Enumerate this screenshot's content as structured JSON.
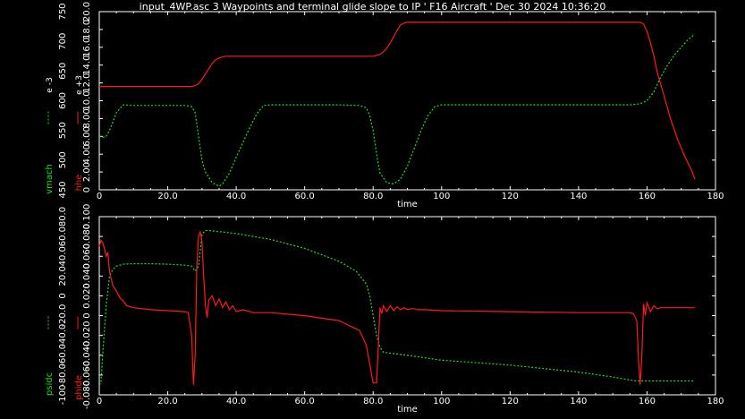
{
  "title": "input_4WP.asc 3 Waypoints and terminal glide slope to IP ' F16 Aircraft ' Dec 30 2024 10:36:20",
  "colors": {
    "background": "#000000",
    "axes": "#ffffff",
    "red": "#ff1a1a",
    "green": "#22dd22"
  },
  "chart_data": [
    {
      "type": "line",
      "xlabel": "time",
      "xlim": [
        0,
        180
      ],
      "xticks": [
        0,
        20,
        40,
        60,
        80,
        100,
        120,
        140,
        160,
        180
      ],
      "xtick_labels": [
        "0",
        "20.0",
        "40.0",
        "60.0",
        "80.0",
        "100",
        "120",
        "140",
        "160",
        "180"
      ],
      "left_axis": {
        "label": "vmach",
        "scale_note": "e -3",
        "color": "#22dd22",
        "ylim": [
          450,
          750
        ],
        "ticks": [
          450,
          500,
          550,
          600,
          650,
          700,
          750
        ],
        "tick_labels": [
          "450",
          "500",
          "550",
          "600",
          "650",
          "700",
          "750"
        ]
      },
      "right_axis": {
        "label": "hhe",
        "scale_note": "e +3",
        "color": "#ff1a1a",
        "ylim": [
          0,
          20
        ],
        "ticks": [
          0,
          2,
          4,
          6,
          8,
          10,
          12,
          14,
          16,
          18,
          20
        ],
        "tick_labels": [
          "0",
          "2.00",
          "4.00",
          "6.00",
          "8.00",
          "10.0",
          "12.0",
          "14.0",
          "16.0",
          "18.0",
          "20.0"
        ]
      },
      "series": [
        {
          "axis": "left",
          "color": "#22dd22",
          "x": [
            0,
            1,
            2,
            3,
            5,
            7,
            10,
            15,
            20,
            25,
            27,
            28,
            29,
            30,
            31,
            33,
            35,
            36,
            38,
            40,
            42,
            44,
            46,
            48,
            50,
            60,
            70,
            76,
            78,
            79,
            80,
            81,
            82,
            84,
            86,
            88,
            90,
            92,
            94,
            96,
            98,
            100,
            120,
            140,
            155,
            158,
            160,
            162,
            164,
            166,
            168,
            170,
            172,
            174
          ],
          "y": [
            540,
            538,
            540,
            550,
            580,
            593,
            592,
            592,
            592,
            592,
            590,
            580,
            540,
            500,
            480,
            462,
            456,
            460,
            478,
            505,
            530,
            555,
            578,
            592,
            593,
            593,
            593,
            592,
            588,
            575,
            550,
            510,
            478,
            462,
            460,
            468,
            490,
            520,
            550,
            575,
            590,
            593,
            593,
            593,
            593,
            595,
            600,
            615,
            640,
            660,
            677,
            690,
            703,
            712
          ]
        },
        {
          "axis": "right",
          "color": "#ff1a1a",
          "x": [
            0,
            2,
            5,
            10,
            20,
            27,
            28,
            29,
            30,
            31,
            32,
            33,
            34,
            35,
            36,
            37,
            38,
            40,
            50,
            60,
            70,
            80,
            81,
            82,
            83,
            84,
            85,
            86,
            87,
            88,
            89,
            90,
            92,
            100,
            120,
            140,
            155,
            157,
            158,
            159,
            160,
            161,
            162,
            163,
            165,
            167,
            169,
            171,
            173,
            174
          ],
          "y": [
            11.6,
            11.6,
            11.6,
            11.6,
            11.6,
            11.6,
            11.7,
            11.9,
            12.4,
            13.0,
            13.6,
            14.2,
            14.6,
            14.8,
            14.9,
            15.0,
            15.0,
            15.0,
            15.0,
            15.0,
            15.0,
            15.0,
            15.1,
            15.2,
            15.5,
            15.9,
            16.5,
            17.2,
            17.9,
            18.5,
            18.7,
            18.8,
            18.8,
            18.8,
            18.8,
            18.8,
            18.8,
            18.8,
            18.8,
            18.6,
            17.8,
            16.5,
            15.0,
            13.2,
            10.5,
            7.8,
            5.6,
            3.8,
            2.2,
            1.2
          ]
        }
      ]
    },
    {
      "type": "line",
      "xlabel": "time",
      "xlim": [
        0,
        180
      ],
      "xticks": [
        0,
        20,
        40,
        60,
        80,
        100,
        120,
        140,
        160,
        180
      ],
      "xtick_labels": [
        "0",
        "20.0",
        "40.0",
        "60.0",
        "80.0",
        "100",
        "120",
        "140",
        "160",
        "180"
      ],
      "left_axis": {
        "label": "psidc",
        "color": "#22dd22",
        "ylim": [
          -100,
          80
        ],
        "ticks": [
          -100,
          -80,
          -60,
          -40,
          -20,
          0,
          20,
          40,
          60,
          80
        ],
        "tick_labels": [
          "-100",
          "-80.0",
          "-60.0",
          "-40.0",
          "-20.0",
          "0",
          "20.0",
          "40.0",
          "60.0",
          "80.0"
        ]
      },
      "right_axis": {
        "label": "phide",
        "color": "#ff1a1a",
        "ylim": [
          -0.08,
          0.1
        ],
        "ticks": [
          -0.08,
          -0.06,
          -0.04,
          -0.02,
          0,
          0.02,
          0.04,
          0.06,
          0.08,
          0.1
        ],
        "tick_labels": [
          "-0.080",
          "-0.060",
          "-0.040",
          "-0.020",
          "0",
          "0.020",
          "0.040",
          "0.060",
          "0.080",
          "0.100"
        ]
      },
      "series": [
        {
          "axis": "left",
          "color": "#22dd22",
          "x": [
            0,
            0.5,
            1,
            2,
            3,
            4,
            5,
            7,
            10,
            15,
            20,
            25,
            27,
            28,
            29,
            30,
            31,
            32,
            40,
            50,
            60,
            70,
            75,
            78,
            79,
            80,
            81,
            82,
            83,
            90,
            100,
            120,
            140,
            150,
            155,
            157,
            158,
            160,
            165,
            170,
            174
          ],
          "y": [
            -90,
            -88,
            -60,
            -10,
            20,
            27,
            30,
            32,
            32.5,
            32.5,
            32,
            31,
            30,
            25,
            30,
            62,
            66,
            66,
            63,
            57,
            48,
            35,
            25,
            12,
            0,
            -20,
            -40,
            -52,
            -57,
            -60,
            -65,
            -70,
            -77,
            -82,
            -85,
            -86,
            -86,
            -86,
            -86,
            -86,
            -86
          ]
        },
        {
          "axis": "right",
          "color": "#ff1a1a",
          "x": [
            0,
            0.5,
            1,
            1.5,
            2,
            2.5,
            3,
            4,
            5,
            6,
            7,
            8,
            10,
            15,
            20,
            25,
            26,
            27,
            27.5,
            28,
            28.5,
            29,
            29.5,
            30,
            30.5,
            31,
            31.5,
            32,
            33,
            34,
            35,
            36,
            37,
            38,
            39,
            40,
            42,
            44,
            45,
            50,
            60,
            70,
            76,
            78,
            80,
            81,
            81.5,
            82,
            82.5,
            83,
            84,
            85,
            86,
            87,
            88,
            89,
            90,
            91,
            92,
            93,
            95,
            100,
            120,
            140,
            155,
            156,
            157,
            157.5,
            158,
            158.5,
            159,
            159.5,
            160,
            161,
            162,
            163,
            164,
            165,
            170,
            174
          ],
          "y": [
            0.07,
            0.076,
            0.074,
            0.068,
            0.06,
            0.064,
            0.044,
            0.03,
            0.025,
            0.018,
            0.015,
            0.01,
            0.008,
            0.006,
            0.005,
            0.004,
            0.003,
            -0.02,
            -0.07,
            -0.04,
            0.05,
            0.08,
            0.085,
            0.075,
            0.04,
            0.01,
            -0.002,
            0.016,
            0.02,
            0.01,
            0.017,
            0.008,
            0.014,
            0.006,
            0.01,
            0.004,
            0.006,
            0.004,
            0.003,
            0.003,
            0.0,
            -0.005,
            -0.015,
            -0.03,
            -0.068,
            -0.068,
            -0.03,
            0.008,
            0.002,
            0.01,
            0.004,
            0.01,
            0.005,
            0.009,
            0.006,
            0.008,
            0.006,
            0.007,
            0.007,
            0.006,
            0.006,
            0.005,
            0.004,
            0.003,
            0.003,
            0.002,
            -0.005,
            -0.045,
            -0.07,
            -0.04,
            0.012,
            0.0,
            0.013,
            0.004,
            0.01,
            0.007,
            0.008,
            0.008,
            0.008,
            0.008
          ]
        }
      ]
    }
  ]
}
